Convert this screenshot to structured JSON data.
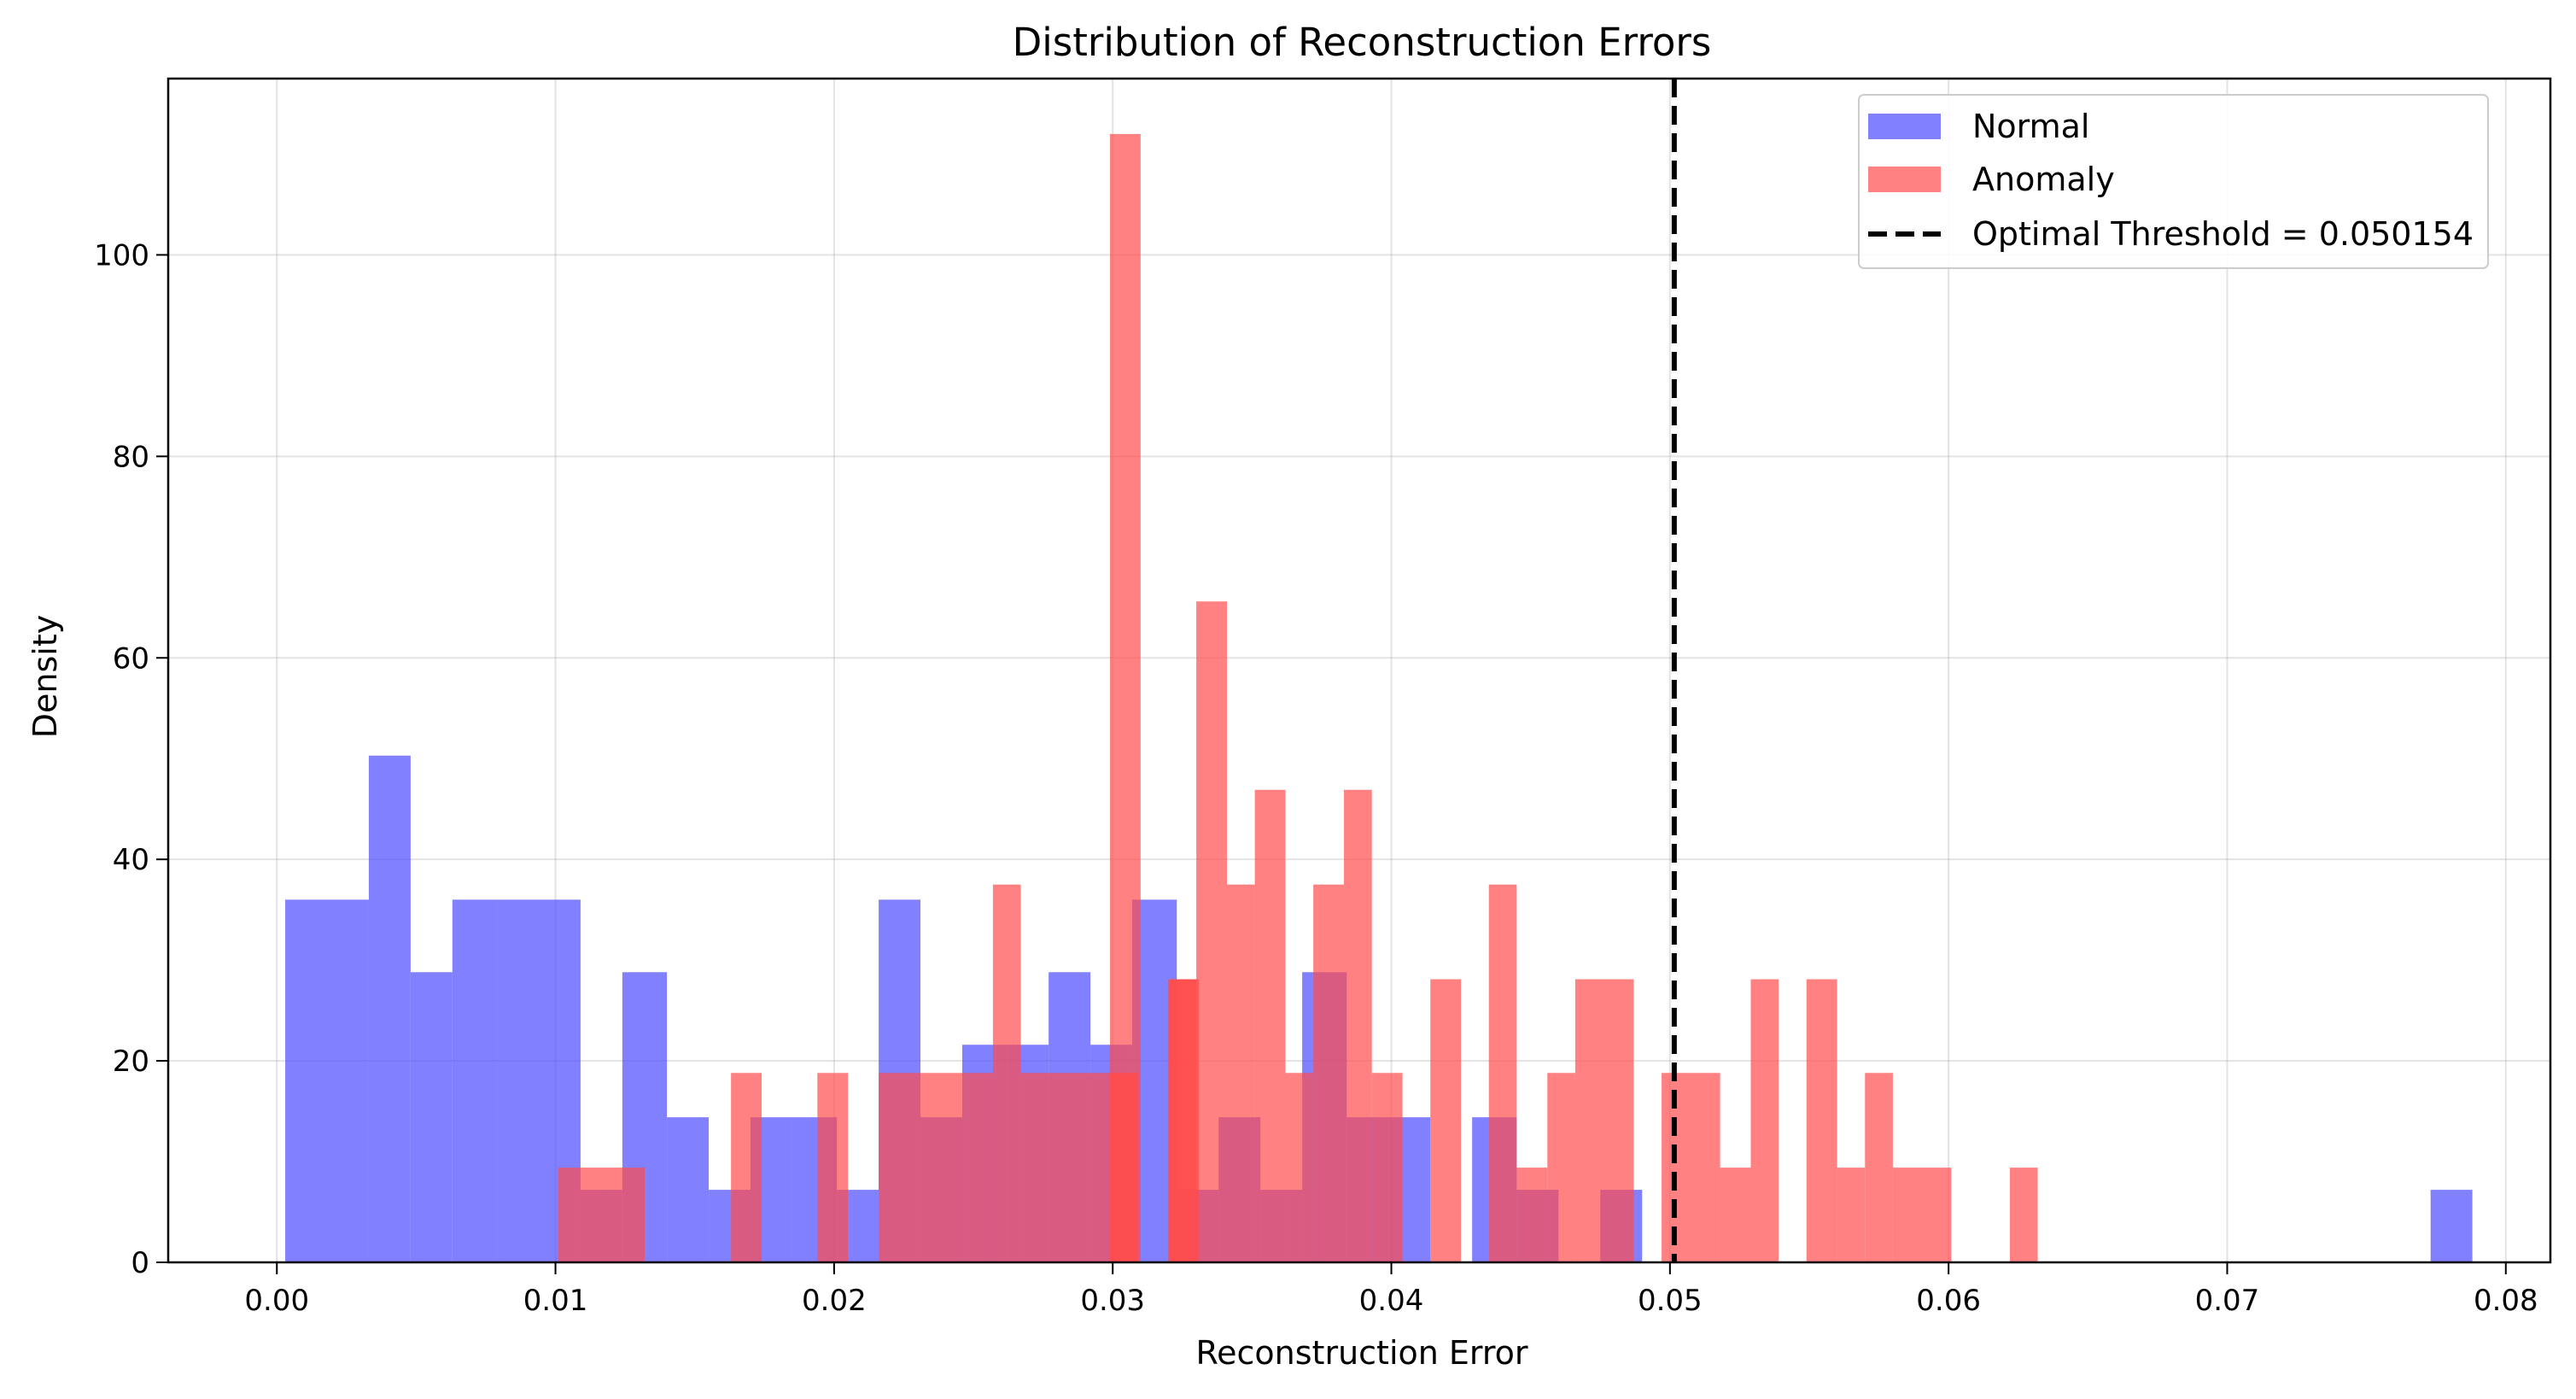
{
  "chart_data": {
    "type": "histogram",
    "title": "Distribution of Reconstruction Errors",
    "xlabel": "Reconstruction Error",
    "ylabel": "Density",
    "xlim": [
      -0.0039,
      0.0816
    ],
    "ylim": [
      0,
      117.5
    ],
    "x_ticks": [
      0.0,
      0.01,
      0.02,
      0.03,
      0.04,
      0.05,
      0.06,
      0.07,
      0.08
    ],
    "x_tick_labels": [
      "0.00",
      "0.01",
      "0.02",
      "0.03",
      "0.04",
      "0.05",
      "0.06",
      "0.07",
      "0.08"
    ],
    "y_ticks": [
      0,
      20,
      40,
      60,
      80,
      100
    ],
    "y_tick_labels": [
      "0",
      "20",
      "40",
      "60",
      "80",
      "100"
    ],
    "grid": true,
    "legend_position": "top-right",
    "series": [
      {
        "name": "Normal",
        "color": "#4b4bff",
        "bins": [
          [
            0.0003,
            0.0018,
            36
          ],
          [
            0.0018,
            0.0033,
            36
          ],
          [
            0.0033,
            0.0048,
            50.3
          ],
          [
            0.0048,
            0.0063,
            28.8
          ],
          [
            0.0063,
            0.0079,
            36
          ],
          [
            0.0079,
            0.0094,
            36
          ],
          [
            0.0094,
            0.0109,
            36
          ],
          [
            0.0109,
            0.0124,
            7.2
          ],
          [
            0.0124,
            0.014,
            28.8
          ],
          [
            0.014,
            0.0155,
            14.4
          ],
          [
            0.0155,
            0.017,
            7.2
          ],
          [
            0.017,
            0.0185,
            14.4
          ],
          [
            0.0185,
            0.0201,
            14.4
          ],
          [
            0.0201,
            0.0216,
            7.2
          ],
          [
            0.0216,
            0.0231,
            36
          ],
          [
            0.0231,
            0.0246,
            14.4
          ],
          [
            0.0246,
            0.0262,
            21.6
          ],
          [
            0.0262,
            0.0277,
            21.6
          ],
          [
            0.0277,
            0.0292,
            28.8
          ],
          [
            0.0292,
            0.0307,
            21.6
          ],
          [
            0.0307,
            0.0323,
            36
          ],
          [
            0.0323,
            0.0338,
            7.2
          ],
          [
            0.0338,
            0.0353,
            14.4
          ],
          [
            0.0353,
            0.0368,
            7.2
          ],
          [
            0.0368,
            0.0384,
            28.8
          ],
          [
            0.0384,
            0.0399,
            14.4
          ],
          [
            0.0399,
            0.0414,
            14.4
          ],
          [
            0.0429,
            0.0445,
            14.4
          ],
          [
            0.0445,
            0.046,
            7.2
          ],
          [
            0.0475,
            0.049,
            7.2
          ],
          [
            0.0773,
            0.0788,
            7.2
          ]
        ]
      },
      {
        "name": "Anomaly",
        "color": "#ff4b4b",
        "bins": [
          [
            0.0101,
            0.0117,
            9.4
          ],
          [
            0.0117,
            0.0132,
            9.4
          ],
          [
            0.0163,
            0.0174,
            18.8
          ],
          [
            0.0194,
            0.0205,
            18.8
          ],
          [
            0.0216,
            0.0247,
            18.8
          ],
          [
            0.0247,
            0.0257,
            18.8
          ],
          [
            0.0257,
            0.0267,
            37.5
          ],
          [
            0.0267,
            0.0288,
            18.8
          ],
          [
            0.0288,
            0.0309,
            18.8
          ],
          [
            0.0299,
            0.0309,
            18.8
          ],
          [
            0.0299,
            0.031,
            112
          ],
          [
            0.032,
            0.033,
            28.1
          ],
          [
            0.032,
            0.0331,
            28.1
          ],
          [
            0.032,
            0.033,
            28.1
          ],
          [
            0.033,
            0.0341,
            65.6
          ],
          [
            0.0341,
            0.0351,
            37.5
          ],
          [
            0.0351,
            0.0362,
            46.9
          ],
          [
            0.0362,
            0.0372,
            18.8
          ],
          [
            0.0372,
            0.0383,
            37.5
          ],
          [
            0.0383,
            0.0393,
            46.9
          ],
          [
            0.0393,
            0.0404,
            18.8
          ],
          [
            0.0404,
            0.0414,
            0
          ],
          [
            0.0414,
            0.0425,
            28.1
          ],
          [
            0.0425,
            0.0435,
            0
          ],
          [
            0.0435,
            0.0445,
            37.5
          ],
          [
            0.0445,
            0.0456,
            9.4
          ],
          [
            0.0456,
            0.0466,
            18.8
          ],
          [
            0.0466,
            0.0487,
            28.1
          ],
          [
            0.0487,
            0.0497,
            0
          ],
          [
            0.0497,
            0.0518,
            18.8
          ],
          [
            0.0518,
            0.0529,
            9.4
          ],
          [
            0.0529,
            0.0539,
            28.1
          ],
          [
            0.0539,
            0.0549,
            0
          ],
          [
            0.0549,
            0.056,
            28.1
          ],
          [
            0.056,
            0.057,
            9.4
          ],
          [
            0.057,
            0.058,
            18.8
          ],
          [
            0.058,
            0.0601,
            9.4
          ],
          [
            0.0622,
            0.0632,
            9.4
          ]
        ]
      }
    ],
    "threshold": {
      "label": "Optimal Threshold = 0.050154",
      "value": 0.050154,
      "color": "#000000",
      "style": "dashed"
    }
  }
}
